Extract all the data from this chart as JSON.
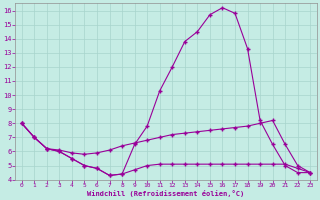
{
  "xlabel": "Windchill (Refroidissement éolien,°C)",
  "bg_color": "#c5ece4",
  "grid_color": "#a8d4cc",
  "line_color": "#990099",
  "ylim": [
    4,
    16.5
  ],
  "xlim": [
    -0.5,
    23.5
  ],
  "yticks": [
    4,
    5,
    6,
    7,
    8,
    9,
    10,
    11,
    12,
    13,
    14,
    15,
    16
  ],
  "xticks": [
    0,
    1,
    2,
    3,
    4,
    5,
    6,
    7,
    8,
    9,
    10,
    11,
    12,
    13,
    14,
    15,
    16,
    17,
    18,
    19,
    20,
    21,
    22,
    23
  ],
  "line1_x": [
    0,
    1,
    2,
    3,
    4,
    5,
    6,
    7,
    8,
    9,
    10,
    11,
    12,
    13,
    14,
    15,
    16,
    17,
    18,
    19,
    20,
    21,
    22,
    23
  ],
  "line1_y": [
    8,
    7,
    6.2,
    6.0,
    5.5,
    5.0,
    4.8,
    4.3,
    4.4,
    6.5,
    7.8,
    10.3,
    12.0,
    13.8,
    14.5,
    15.7,
    16.2,
    15.8,
    13.3,
    8.2,
    6.5,
    5.0,
    4.5,
    4.5
  ],
  "line2_x": [
    0,
    1,
    2,
    3,
    4,
    5,
    6,
    7,
    8,
    9,
    10,
    11,
    12,
    13,
    14,
    15,
    16,
    17,
    18,
    19,
    20,
    21,
    22,
    23
  ],
  "line2_y": [
    8,
    7.0,
    6.2,
    6.1,
    5.9,
    5.8,
    5.9,
    6.1,
    6.4,
    6.6,
    6.8,
    7.0,
    7.2,
    7.3,
    7.4,
    7.5,
    7.6,
    7.7,
    7.8,
    8.0,
    8.2,
    6.5,
    5.0,
    4.5
  ],
  "line3_x": [
    0,
    1,
    2,
    3,
    4,
    5,
    6,
    7,
    8,
    9,
    10,
    11,
    12,
    13,
    14,
    15,
    16,
    17,
    18,
    19,
    20,
    21,
    22,
    23
  ],
  "line3_y": [
    8,
    7.0,
    6.2,
    6.0,
    5.5,
    5.0,
    4.8,
    4.3,
    4.4,
    4.7,
    5.0,
    5.1,
    5.1,
    5.1,
    5.1,
    5.1,
    5.1,
    5.1,
    5.1,
    5.1,
    5.1,
    5.1,
    4.8,
    4.5
  ]
}
